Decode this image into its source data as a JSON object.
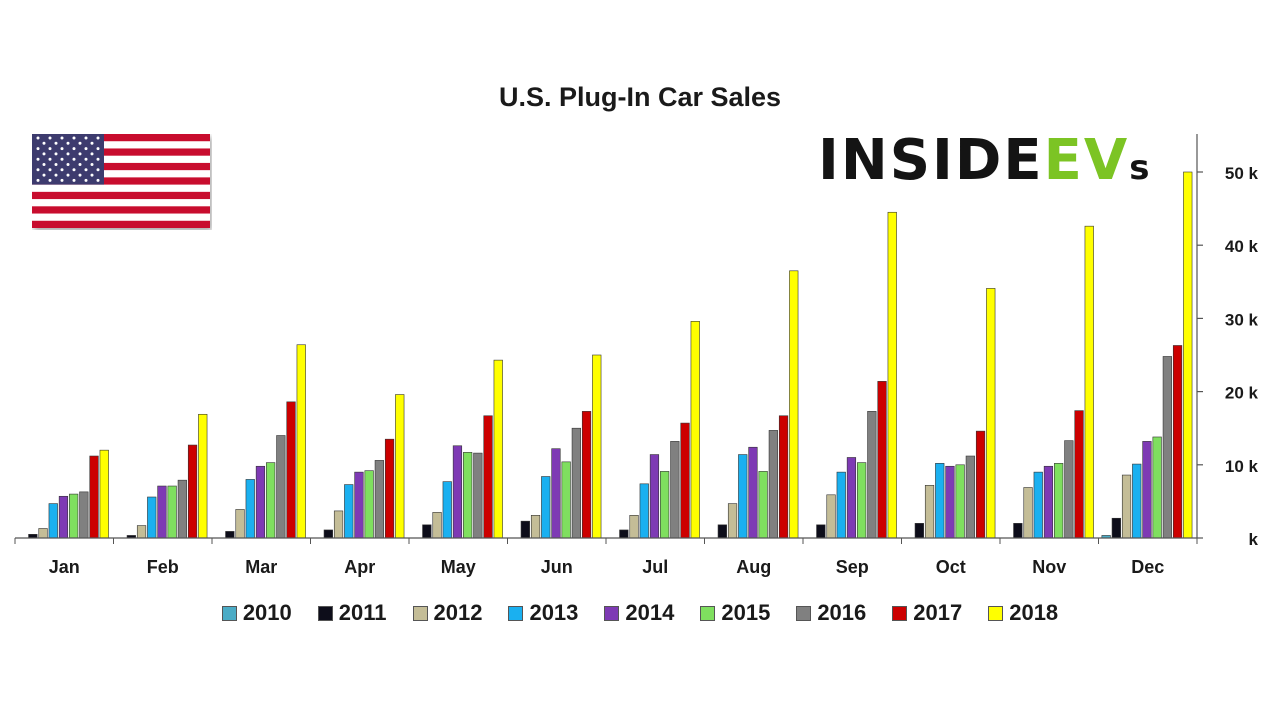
{
  "brand": {
    "prefix": "INSIDE",
    "accent": "EV",
    "suffix": "s",
    "accent_color": "#7cc424"
  },
  "flag": {
    "icon": "us-flag-icon"
  },
  "chart_data": {
    "type": "bar",
    "title": "U.S. Plug-In Car Sales",
    "xlabel": "",
    "ylabel": "",
    "categories": [
      "Jan",
      "Feb",
      "Mar",
      "Apr",
      "May",
      "Jun",
      "Jul",
      "Aug",
      "Sep",
      "Oct",
      "Nov",
      "Dec"
    ],
    "ylim": [
      0,
      50000
    ],
    "yticks": [
      0,
      10000,
      20000,
      30000,
      40000,
      50000
    ],
    "ytick_labels": [
      "k",
      "10 k",
      "20 k",
      "30 k",
      "40 k",
      "50 k"
    ],
    "y_axis_side": "right",
    "grid": false,
    "legend_position": "bottom",
    "series": [
      {
        "name": "2010",
        "color": "#4bacc6",
        "values": [
          0,
          0,
          0,
          0,
          0,
          0,
          0,
          0,
          0,
          0,
          0,
          350
        ]
      },
      {
        "name": "2011",
        "color": "#0d0d1a",
        "values": [
          500,
          350,
          900,
          1100,
          1800,
          2300,
          1100,
          1800,
          1800,
          2000,
          2000,
          2700
        ]
      },
      {
        "name": "2012",
        "color": "#c4bd97",
        "values": [
          1300,
          1700,
          3900,
          3700,
          3500,
          3100,
          3100,
          4700,
          5900,
          7200,
          6900,
          8600
        ]
      },
      {
        "name": "2013",
        "color": "#1ab0f0",
        "values": [
          4700,
          5600,
          8000,
          7300,
          7700,
          8400,
          7400,
          11400,
          9000,
          10200,
          9000,
          10100
        ]
      },
      {
        "name": "2014",
        "color": "#7e3ab4",
        "values": [
          5700,
          7100,
          9800,
          9000,
          12600,
          12200,
          11400,
          12400,
          11000,
          9800,
          9800,
          13200
        ]
      },
      {
        "name": "2015",
        "color": "#7fdf5f",
        "values": [
          6000,
          7100,
          10300,
          9200,
          11700,
          10400,
          9100,
          9100,
          10300,
          10000,
          10200,
          13800
        ]
      },
      {
        "name": "2016",
        "color": "#808080",
        "values": [
          6300,
          7900,
          14000,
          10600,
          11600,
          15000,
          13200,
          14700,
          17300,
          11200,
          13300,
          24800
        ]
      },
      {
        "name": "2017",
        "color": "#cc0000",
        "values": [
          11200,
          12700,
          18600,
          13500,
          16700,
          17300,
          15700,
          16700,
          21400,
          14600,
          17400,
          26300
        ]
      },
      {
        "name": "2018",
        "color": "#ffff00",
        "values": [
          12000,
          16900,
          26400,
          19600,
          24300,
          25000,
          29600,
          36500,
          44500,
          34100,
          42600,
          50000
        ]
      }
    ]
  }
}
